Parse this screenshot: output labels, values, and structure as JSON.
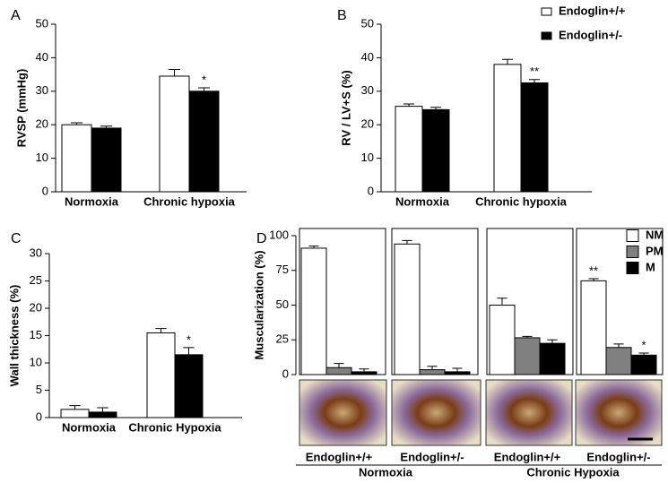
{
  "chart_data": [
    {
      "type": "bar",
      "panel": "A",
      "ylabel": "RVSP (mmHg)",
      "categories": [
        "Normoxia",
        "Chronic hypoxia"
      ],
      "ylim": [
        0,
        50
      ],
      "yticks": [
        0,
        10,
        20,
        30,
        40,
        50
      ],
      "series": [
        {
          "color": "#ffffff",
          "values": [
            20,
            34.5
          ],
          "errors": [
            0.6,
            2
          ]
        },
        {
          "color": "#000000",
          "values": [
            19,
            30
          ],
          "errors": [
            0.6,
            1
          ],
          "annotations": [
            null,
            "*"
          ]
        }
      ]
    },
    {
      "type": "bar",
      "panel": "B",
      "ylabel": "RV / LV+S (%)",
      "categories": [
        "Normoxia",
        "Chronic hypoxia"
      ],
      "ylim": [
        0,
        50
      ],
      "yticks": [
        0,
        10,
        20,
        30,
        40,
        50
      ],
      "legend": "upper right",
      "series": [
        {
          "name": "Endoglin+/+",
          "color": "#ffffff",
          "values": [
            25.5,
            38
          ],
          "errors": [
            0.7,
            1.5
          ]
        },
        {
          "name": "Endoglin+/-",
          "color": "#000000",
          "values": [
            24.5,
            32.5
          ],
          "errors": [
            0.7,
            1
          ],
          "annotations": [
            null,
            "**"
          ]
        }
      ]
    },
    {
      "type": "bar",
      "panel": "C",
      "ylabel": "Wall thickness (%)",
      "categories": [
        "Normoxia",
        "Chronic Hypoxia"
      ],
      "ylim": [
        0,
        30
      ],
      "yticks": [
        0,
        5,
        10,
        15,
        20,
        25,
        30
      ],
      "series": [
        {
          "color": "#ffffff",
          "values": [
            1.5,
            15.5
          ],
          "errors": [
            0.7,
            0.8
          ]
        },
        {
          "color": "#000000",
          "values": [
            1,
            11.5
          ],
          "errors": [
            0.8,
            1.3
          ],
          "annotations": [
            null,
            "*"
          ]
        }
      ]
    },
    {
      "type": "bar",
      "panel": "D",
      "ylabel": "Muscularization (%)",
      "categories": [
        "Endoglin+/+",
        "Endoglin+/-",
        "Endoglin+/+",
        "Endoglin+/-"
      ],
      "group_labels": [
        "Normoxia",
        "Chronic Hypoxia"
      ],
      "ylim": [
        0,
        100
      ],
      "yticks": [
        0,
        25,
        50,
        75,
        100
      ],
      "legend": "upper right",
      "series": [
        {
          "name": "NM",
          "color": "#ffffff",
          "values": [
            91,
            94,
            50,
            67.5
          ],
          "errors": [
            1.5,
            2.5,
            5,
            1.5
          ],
          "annotations": [
            null,
            null,
            null,
            "**"
          ]
        },
        {
          "name": "PM",
          "color": "#808080",
          "values": [
            5,
            3.5,
            26.5,
            19.5
          ],
          "errors": [
            3,
            2.5,
            1,
            2.5
          ]
        },
        {
          "name": "M",
          "color": "#000000",
          "values": [
            2,
            2,
            22.5,
            14
          ],
          "errors": [
            2,
            2.5,
            2.5,
            1.5
          ],
          "annotations": [
            null,
            null,
            null,
            "*"
          ]
        }
      ]
    }
  ]
}
